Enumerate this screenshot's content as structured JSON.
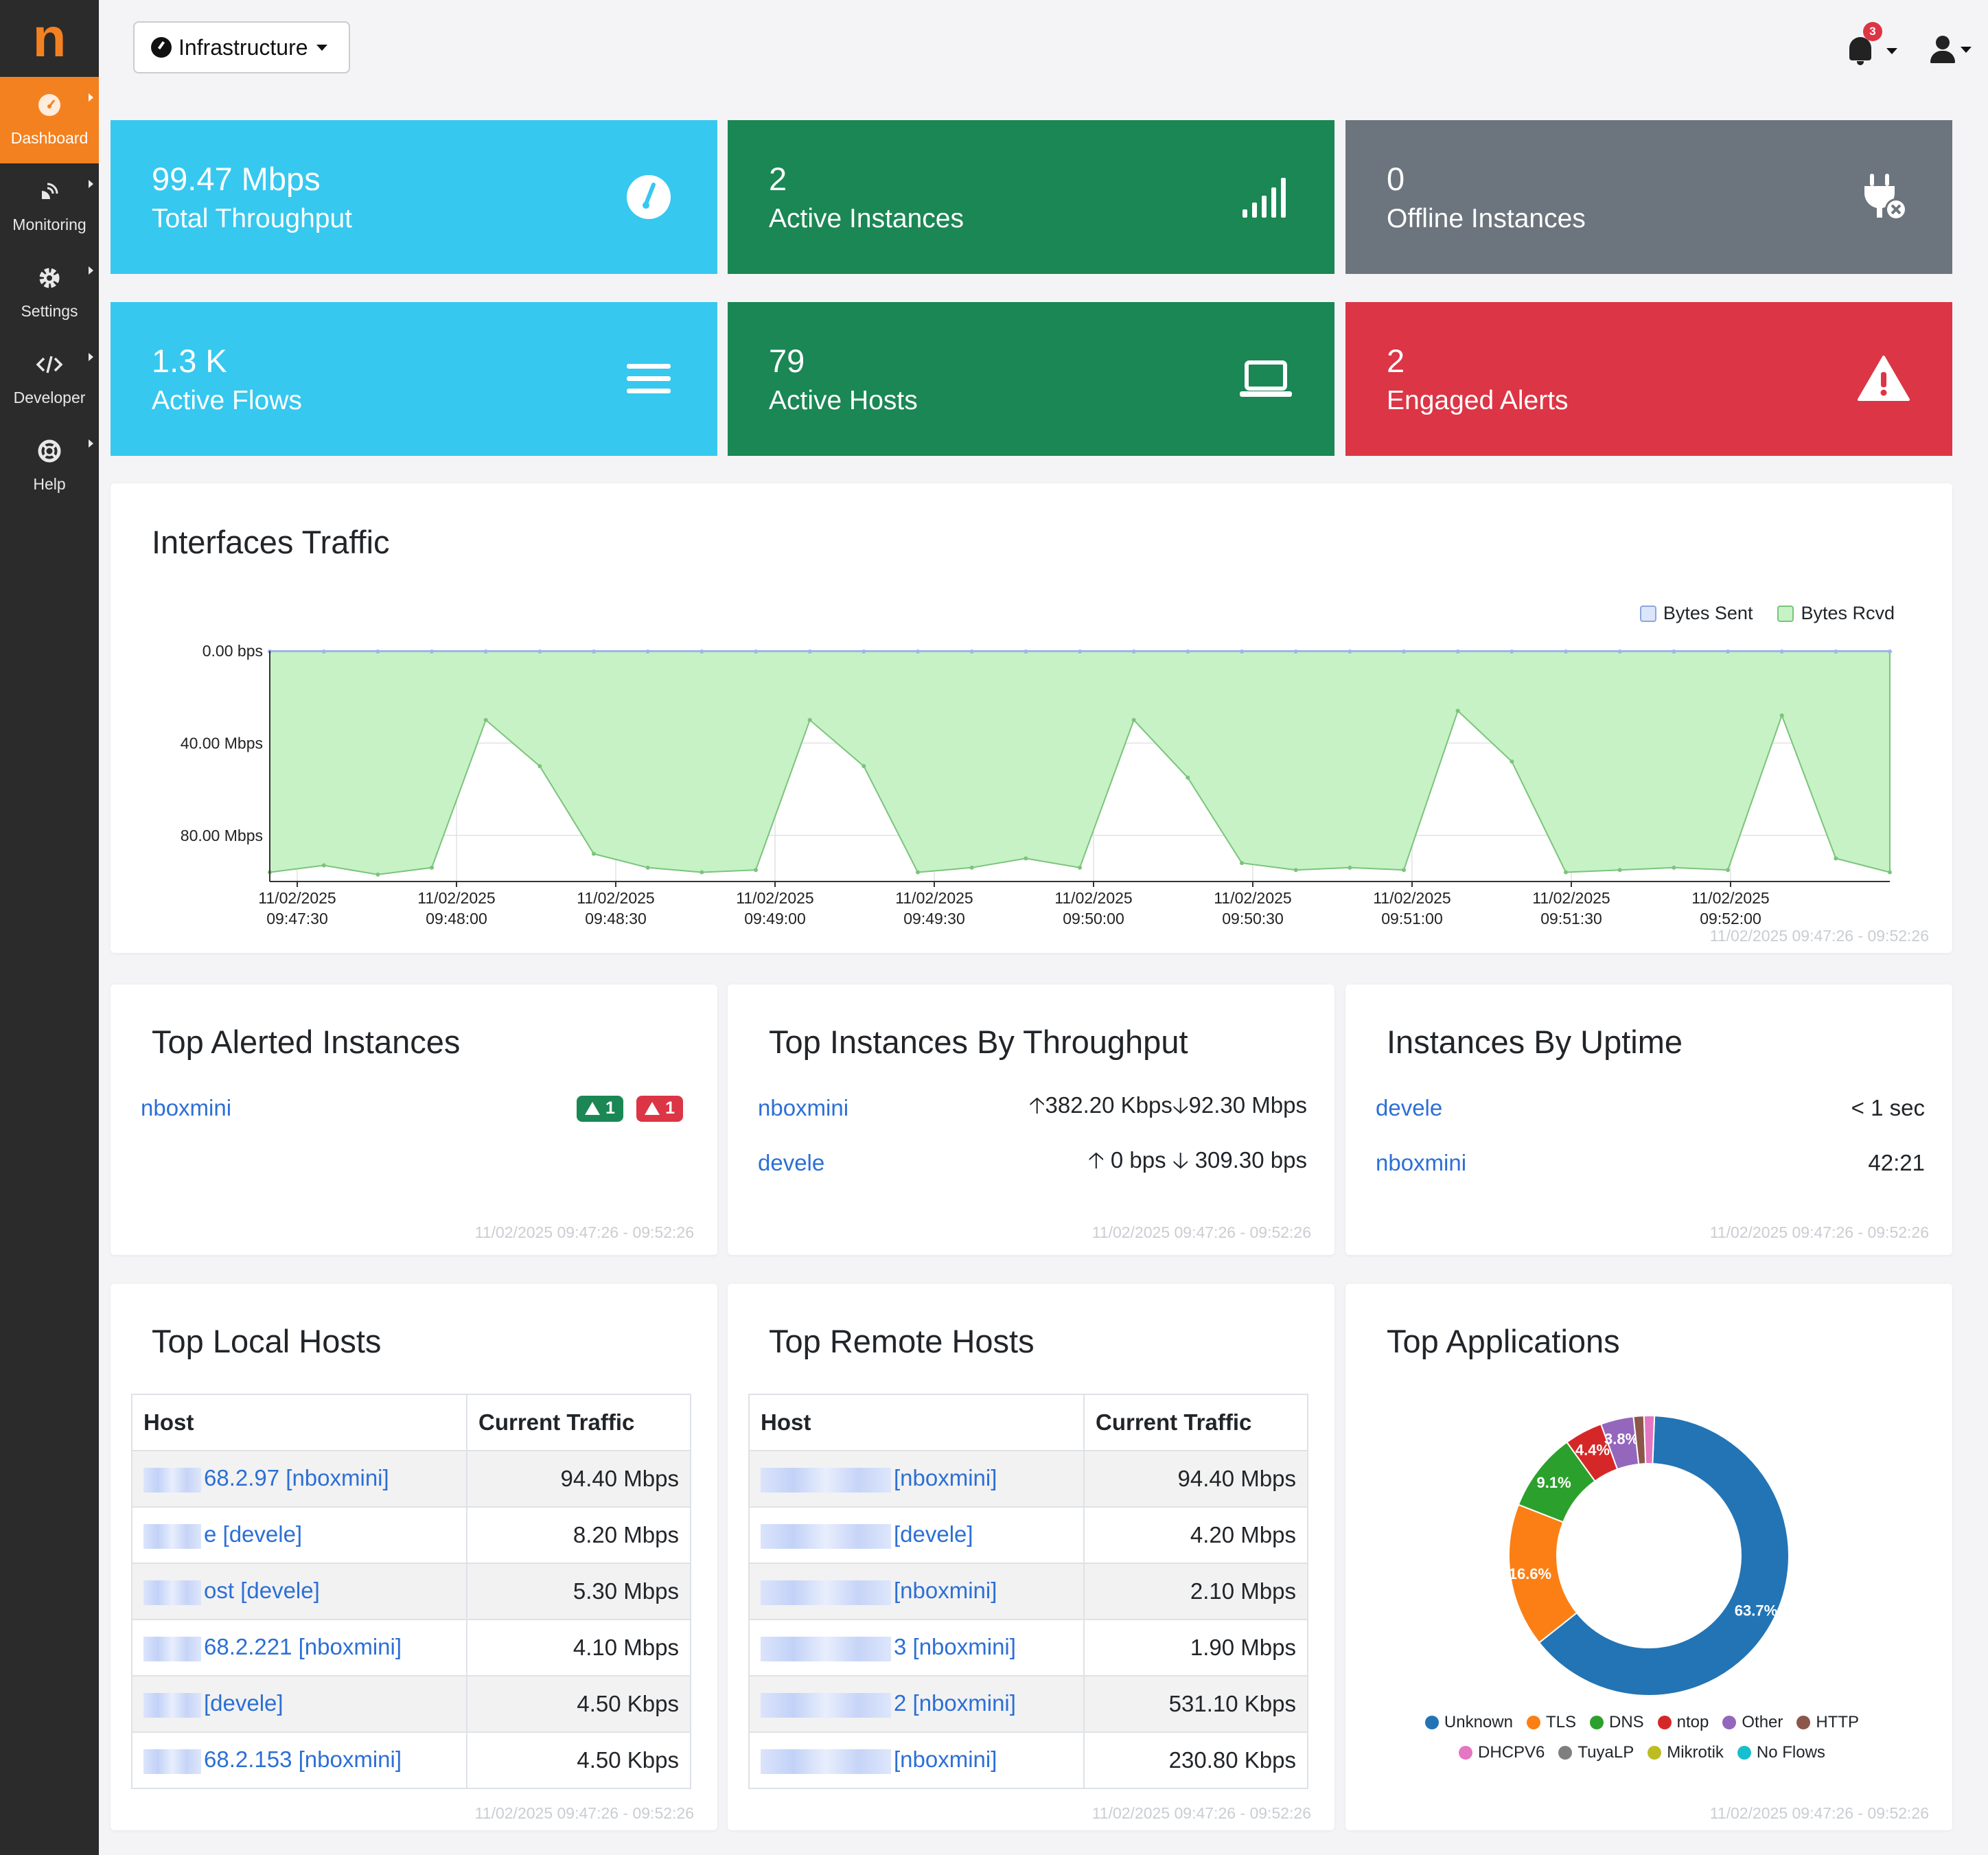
{
  "sidebar": {
    "logo": "n",
    "items": [
      {
        "label": "Dashboard",
        "active": true
      },
      {
        "label": "Monitoring",
        "active": false
      },
      {
        "label": "Settings",
        "active": false
      },
      {
        "label": "Developer",
        "active": false
      },
      {
        "label": "Help",
        "active": false
      }
    ]
  },
  "header": {
    "interface_selector": "Infrastructure",
    "notifications_count": "3"
  },
  "stats": [
    {
      "value": "99.47 Mbps",
      "label": "Total Throughput",
      "icon": "gauge-icon",
      "color": "#36c8ef"
    },
    {
      "value": "2",
      "label": "Active Instances",
      "icon": "signal-icon",
      "color": "#1a8754"
    },
    {
      "value": "0",
      "label": "Offline Instances",
      "icon": "plug-off-icon",
      "color": "#6c757d"
    },
    {
      "value": "1.3 K",
      "label": "Active Flows",
      "icon": "bars-icon",
      "color": "#36c8ef"
    },
    {
      "value": "79",
      "label": "Active Hosts",
      "icon": "laptop-icon",
      "color": "#1a8754"
    },
    {
      "value": "2",
      "label": "Engaged Alerts",
      "icon": "warning-icon",
      "color": "#dc3545"
    }
  ],
  "traffic": {
    "title": "Interfaces Traffic",
    "footer": "11/02/2025 09:47:26 - 09:52:26",
    "legend": [
      "Bytes Sent",
      "Bytes Rcvd"
    ]
  },
  "chart_data": {
    "type": "area",
    "title": "Interfaces Traffic",
    "y_tick_labels": [
      "0.00 bps",
      "40.00 Mbps",
      "80.00 Mbps"
    ],
    "ylim": [
      0,
      100
    ],
    "y_inverted": true,
    "x_tick_dates": [
      "11/02/2025",
      "11/02/2025",
      "11/02/2025",
      "11/02/2025",
      "11/02/2025",
      "11/02/2025",
      "11/02/2025",
      "11/02/2025",
      "11/02/2025",
      "11/02/2025"
    ],
    "x_tick_times": [
      "09:47:30",
      "09:48:00",
      "09:48:30",
      "09:49:00",
      "09:49:30",
      "09:50:00",
      "09:50:30",
      "09:51:00",
      "09:51:30",
      "09:52:00"
    ],
    "x": [
      "09:47:26",
      "09:47:36",
      "09:47:46",
      "09:47:56",
      "09:48:06",
      "09:48:16",
      "09:48:26",
      "09:48:36",
      "09:48:46",
      "09:48:56",
      "09:49:06",
      "09:49:16",
      "09:49:26",
      "09:49:36",
      "09:49:46",
      "09:49:56",
      "09:50:06",
      "09:50:16",
      "09:50:26",
      "09:50:36",
      "09:50:46",
      "09:50:56",
      "09:51:06",
      "09:51:16",
      "09:51:26",
      "09:51:36",
      "09:51:46",
      "09:51:56",
      "09:52:06",
      "09:52:16",
      "09:52:26"
    ],
    "grid": true,
    "legend_position": "top-right",
    "series": [
      {
        "name": "Bytes Sent",
        "color": "#c9d8f5",
        "values": [
          0.3,
          0.3,
          0.3,
          0.3,
          0.3,
          0.3,
          0.3,
          0.3,
          0.3,
          0.3,
          0.3,
          0.3,
          0.3,
          0.3,
          0.3,
          0.3,
          0.3,
          0.3,
          0.3,
          0.3,
          0.3,
          0.3,
          0.3,
          0.3,
          0.3,
          0.3,
          0.3,
          0.3,
          0.3,
          0.3,
          0.3
        ]
      },
      {
        "name": "Bytes Rcvd",
        "color": "#c6f2c6",
        "values": [
          96,
          93,
          97,
          94,
          30,
          50,
          88,
          94,
          96,
          95,
          30,
          50,
          96,
          94,
          90,
          94,
          30,
          55,
          92,
          95,
          94,
          95,
          26,
          48,
          96,
          95,
          94,
          95,
          28,
          90,
          96
        ]
      }
    ]
  },
  "top_alerted": {
    "title": "Top Alerted Instances",
    "footer": "11/02/2025 09:47:26 - 09:52:26",
    "rows": [
      {
        "name": "nboxmini",
        "warning_count": "1",
        "error_count": "1"
      }
    ]
  },
  "top_throughput": {
    "title": "Top Instances By Throughput",
    "footer": "11/02/2025 09:47:26 - 09:52:26",
    "rows": [
      {
        "name": "nboxmini",
        "up": "382.20 Kbps",
        "down": "92.30 Mbps"
      },
      {
        "name": "devele",
        "up": "0 bps",
        "down": "309.30 bps"
      }
    ]
  },
  "uptime": {
    "title": "Instances By Uptime",
    "footer": "11/02/2025 09:47:26 - 09:52:26",
    "rows": [
      {
        "name": "devele",
        "value": "< 1 sec"
      },
      {
        "name": "nboxmini",
        "value": "42:21"
      }
    ]
  },
  "local_hosts": {
    "title": "Top Local Hosts",
    "footer": "11/02/2025 09:47:26 - 09:52:26",
    "columns": [
      "Host",
      "Current Traffic"
    ],
    "rows": [
      {
        "host": "68.2.97 [nboxmini]",
        "traffic": "94.40 Mbps"
      },
      {
        "host": "e [devele]",
        "traffic": "8.20 Mbps"
      },
      {
        "host": "ost [devele]",
        "traffic": "5.30 Mbps"
      },
      {
        "host": "68.2.221 [nboxmini]",
        "traffic": "4.10 Mbps"
      },
      {
        "host": "[devele]",
        "traffic": "4.50 Kbps"
      },
      {
        "host": "68.2.153 [nboxmini]",
        "traffic": "4.50 Kbps"
      }
    ]
  },
  "remote_hosts": {
    "title": "Top Remote Hosts",
    "footer": "11/02/2025 09:47:26 - 09:52:26",
    "columns": [
      "Host",
      "Current Traffic"
    ],
    "rows": [
      {
        "host": "[nboxmini]",
        "traffic": "94.40 Mbps"
      },
      {
        "host": "[devele]",
        "traffic": "4.20 Mbps"
      },
      {
        "host": "[nboxmini]",
        "traffic": "2.10 Mbps"
      },
      {
        "host": "3 [nboxmini]",
        "traffic": "1.90 Mbps"
      },
      {
        "host": "2 [nboxmini]",
        "traffic": "531.10 Kbps"
      },
      {
        "host": "[nboxmini]",
        "traffic": "230.80 Kbps"
      }
    ]
  },
  "applications": {
    "title": "Top Applications",
    "footer": "11/02/2025 09:47:26 - 09:52:26",
    "chart": {
      "type": "pie",
      "slices": [
        {
          "name": "Unknown",
          "value": 63.7,
          "label": "63.7%",
          "color": "#2274b5"
        },
        {
          "name": "TLS",
          "value": 16.6,
          "label": "16.6%",
          "color": "#fb7f15"
        },
        {
          "name": "DNS",
          "value": 9.1,
          "label": "9.1%",
          "color": "#2ca02c"
        },
        {
          "name": "ntop",
          "value": 4.4,
          "label": "4.4%",
          "color": "#d62728"
        },
        {
          "name": "Other",
          "value": 3.8,
          "label": "3.8%",
          "color": "#9467bd"
        },
        {
          "name": "HTTP",
          "value": 1.2,
          "label": "",
          "color": "#8c564b"
        },
        {
          "name": "DHCPV6",
          "value": 1.2,
          "label": "",
          "color": "#e377c2"
        },
        {
          "name": "TuyaLP",
          "value": 0.0,
          "label": "",
          "color": "#7f7f7f"
        },
        {
          "name": "Mikrotik",
          "value": 0.0,
          "label": "",
          "color": "#bcbd22"
        },
        {
          "name": "No Flows",
          "value": 0.0,
          "label": "",
          "color": "#17becf"
        }
      ]
    }
  }
}
